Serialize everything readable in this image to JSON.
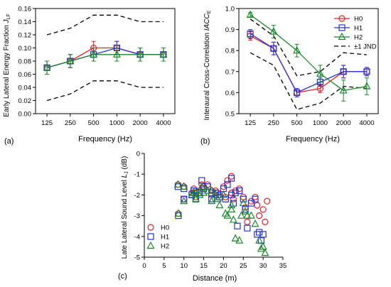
{
  "chart_data": [
    {
      "panel": "(a)",
      "type": "line",
      "ylabel": "Early Lateral Energy Fraction J_LF",
      "xlabel": "Frequency (Hz)",
      "categories": [
        "125",
        "250",
        "500",
        "1000",
        "2000",
        "4000"
      ],
      "ylim": [
        0.0,
        0.16
      ],
      "yticks": [
        "0.00",
        "0.02",
        "0.04",
        "0.06",
        "0.08",
        "0.10",
        "0.12",
        "0.14",
        "0.16"
      ],
      "grid": false,
      "series": [
        {
          "key": "H0",
          "color": "#e8202a",
          "marker": "circle",
          "values": [
            0.07,
            0.08,
            0.1,
            0.1,
            0.09,
            0.09
          ],
          "err": [
            0.01,
            0.01,
            0.01,
            0.01,
            0.01,
            0.01
          ]
        },
        {
          "key": "H1",
          "color": "#2233d6",
          "marker": "square",
          "values": [
            0.07,
            0.08,
            0.09,
            0.1,
            0.09,
            0.09
          ],
          "err": [
            0.01,
            0.01,
            0.01,
            0.01,
            0.01,
            0.01
          ]
        },
        {
          "key": "H2",
          "color": "#18882a",
          "marker": "triangle",
          "values": [
            0.07,
            0.08,
            0.09,
            0.09,
            0.09,
            0.09
          ],
          "err": [
            0.01,
            0.01,
            0.01,
            0.01,
            0.01,
            0.01
          ]
        }
      ],
      "jnd_upper": [
        0.12,
        0.13,
        0.15,
        0.15,
        0.14,
        0.14
      ],
      "jnd_lower": [
        0.02,
        0.03,
        0.05,
        0.05,
        0.04,
        0.04
      ]
    },
    {
      "panel": "(b)",
      "type": "line",
      "ylabel": "Interaural Cross-Correlation IACC_E",
      "xlabel": "Frequency (Hz)",
      "categories": [
        "125",
        "250",
        "500",
        "1000",
        "2000",
        "4000"
      ],
      "ylim": [
        0.5,
        1.0
      ],
      "yticks": [
        "0.5",
        "0.6",
        "0.7",
        "0.8",
        "0.9",
        "1.0"
      ],
      "grid": false,
      "legend_position": "top-right",
      "legend": [
        "H0",
        "H1",
        "H2",
        "±1 JND"
      ],
      "series": [
        {
          "name": "H0",
          "color": "#e8202a",
          "marker": "circle",
          "values": [
            0.87,
            0.81,
            0.6,
            0.62,
            0.7,
            0.7
          ],
          "err": [
            0.02,
            0.03,
            0.02,
            0.02,
            0.03,
            0.02
          ]
        },
        {
          "name": "H1",
          "color": "#2233d6",
          "marker": "square",
          "values": [
            0.88,
            0.81,
            0.6,
            0.65,
            0.7,
            0.7
          ],
          "err": [
            0.02,
            0.03,
            0.02,
            0.02,
            0.03,
            0.02
          ]
        },
        {
          "name": "H2",
          "color": "#18882a",
          "marker": "triangle",
          "values": [
            0.97,
            0.89,
            0.8,
            0.69,
            0.61,
            0.63
          ],
          "err": [
            0.01,
            0.03,
            0.03,
            0.04,
            0.05,
            0.04
          ]
        }
      ],
      "jnd_upper": [
        0.95,
        0.87,
        0.68,
        0.7,
        0.79,
        0.78
      ],
      "jnd_lower": [
        0.79,
        0.73,
        0.52,
        0.55,
        0.63,
        0.62
      ]
    },
    {
      "panel": "(c)",
      "type": "scatter",
      "ylabel": "Late Lateral Sound Level L_J (dB)",
      "xlabel": "Distance (m)",
      "xlim": [
        0,
        35
      ],
      "ylim": [
        -5,
        0
      ],
      "xticks": [
        "0",
        "5",
        "10",
        "15",
        "20",
        "25",
        "30",
        "35"
      ],
      "yticks": [
        "-5",
        "-4",
        "-3",
        "-2",
        "-1",
        "0"
      ],
      "grid": false,
      "legend_position": "bottom-left",
      "legend": [
        "H0",
        "H1",
        "H2"
      ],
      "series": [
        {
          "name": "H0",
          "color": "#e8202a",
          "marker": "circle",
          "points": [
            [
              8.5,
              -1.5
            ],
            [
              8.6,
              -2.9
            ],
            [
              10,
              -1.6
            ],
            [
              10,
              -2.2
            ],
            [
              12,
              -1.9
            ],
            [
              12.5,
              -1.7
            ],
            [
              13,
              -1.8
            ],
            [
              13,
              -2.1
            ],
            [
              14,
              -1.8
            ],
            [
              14.5,
              -1.5
            ],
            [
              15,
              -1.6
            ],
            [
              16,
              -1.5
            ],
            [
              17,
              -1.8
            ],
            [
              17,
              -2.0
            ],
            [
              18,
              -1.8
            ],
            [
              18.5,
              -1.9
            ],
            [
              19,
              -2.0
            ],
            [
              20,
              -1.6
            ],
            [
              20.5,
              -2.1
            ],
            [
              21,
              -1.3
            ],
            [
              22,
              -1.1
            ],
            [
              22,
              -1.9
            ],
            [
              22.5,
              -2.2
            ],
            [
              23,
              -1.8
            ],
            [
              24,
              -1.7
            ],
            [
              25,
              -2.1
            ],
            [
              25.5,
              -2.6
            ],
            [
              26,
              -3.3
            ],
            [
              27,
              -2.3
            ],
            [
              28,
              -2.1
            ],
            [
              28.5,
              -2.5
            ],
            [
              29,
              -3.0
            ],
            [
              30,
              -2.7
            ],
            [
              30.5,
              -3.3
            ],
            [
              31,
              -2.3
            ]
          ]
        },
        {
          "name": "H1",
          "color": "#2233d6",
          "marker": "square",
          "points": [
            [
              8.5,
              -1.6
            ],
            [
              8.6,
              -3.0
            ],
            [
              10,
              -1.7
            ],
            [
              10,
              -2.2
            ],
            [
              12,
              -2.0
            ],
            [
              12.5,
              -1.8
            ],
            [
              13,
              -1.9
            ],
            [
              13,
              -2.2
            ],
            [
              14,
              -1.9
            ],
            [
              14.5,
              -1.3
            ],
            [
              15,
              -1.7
            ],
            [
              16,
              -1.6
            ],
            [
              17,
              -1.9
            ],
            [
              17,
              -2.2
            ],
            [
              18,
              -1.9
            ],
            [
              18.5,
              -2.0
            ],
            [
              19,
              -2.1
            ],
            [
              20,
              -1.7
            ],
            [
              20.5,
              -2.2
            ],
            [
              21,
              -1.5
            ],
            [
              22,
              -1.2
            ],
            [
              22,
              -2.0
            ],
            [
              22.5,
              -2.4
            ],
            [
              23,
              -1.9
            ],
            [
              23.5,
              -3.5
            ],
            [
              24,
              -1.8
            ],
            [
              25,
              -2.2
            ],
            [
              25.5,
              -2.7
            ],
            [
              26,
              -3.6
            ],
            [
              27,
              -2.4
            ],
            [
              28,
              -2.2
            ],
            [
              28.5,
              -3.9
            ],
            [
              29,
              -3.8
            ],
            [
              29.5,
              -4.2
            ],
            [
              30,
              -3.9
            ]
          ]
        },
        {
          "name": "H2",
          "color": "#18882a",
          "marker": "triangle",
          "points": [
            [
              8.5,
              -1.5
            ],
            [
              8.6,
              -2.9
            ],
            [
              10,
              -1.6
            ],
            [
              10,
              -2.3
            ],
            [
              12,
              -2.0
            ],
            [
              12.5,
              -1.9
            ],
            [
              13,
              -1.9
            ],
            [
              13,
              -2.2
            ],
            [
              14,
              -2.0
            ],
            [
              14.5,
              -1.6
            ],
            [
              15,
              -1.9
            ],
            [
              16,
              -1.8
            ],
            [
              17,
              -1.8
            ],
            [
              17,
              -2.3
            ],
            [
              18,
              -2.0
            ],
            [
              18.5,
              -2.2
            ],
            [
              19,
              -2.5
            ],
            [
              20,
              -2.0
            ],
            [
              20.5,
              -2.9
            ],
            [
              21,
              -3.0
            ],
            [
              22,
              -2.5
            ],
            [
              22,
              -2.7
            ],
            [
              22.5,
              -3.2
            ],
            [
              23,
              -4.1
            ],
            [
              24,
              -4.2
            ],
            [
              24.5,
              -3.0
            ],
            [
              25,
              -2.4
            ],
            [
              25.5,
              -2.8
            ],
            [
              26,
              -3.0
            ],
            [
              27,
              -3.0
            ],
            [
              28,
              -3.4
            ],
            [
              29,
              -4.2
            ],
            [
              29.5,
              -4.6
            ],
            [
              30,
              -4.5
            ],
            [
              30.5,
              -4.8
            ]
          ]
        }
      ]
    }
  ]
}
